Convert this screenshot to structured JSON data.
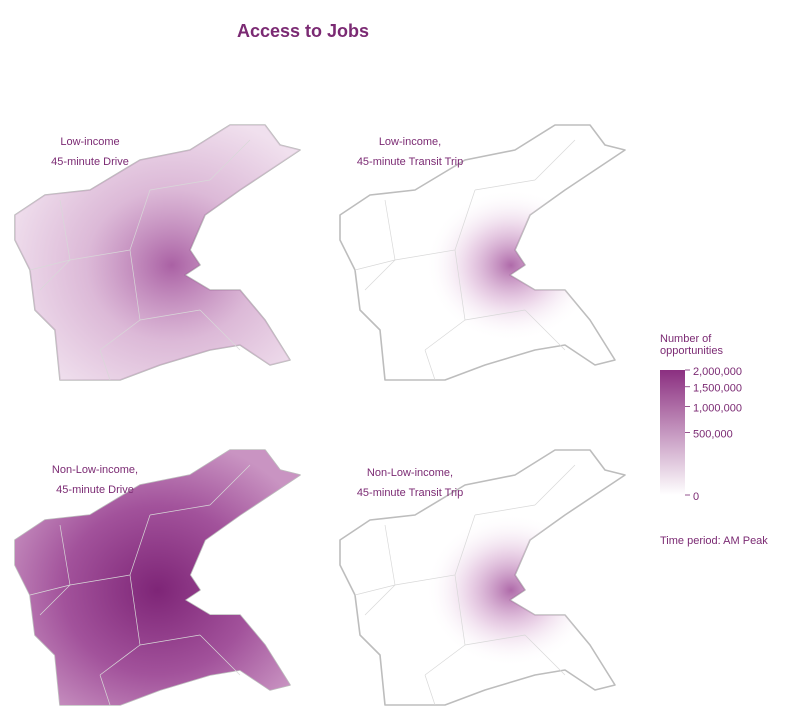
{
  "title": "Access to Jobs",
  "panels": [
    {
      "label": [
        "Low-income",
        "45-minute Drive"
      ]
    },
    {
      "label": [
        "Low-income,",
        "45-minute Transit Trip"
      ]
    },
    {
      "label": [
        "Non-Low-income,",
        "45-minute Drive"
      ]
    },
    {
      "label": [
        "Non-Low-income,",
        "45-minute Transit Trip"
      ]
    }
  ],
  "legend": {
    "title": [
      "Number of",
      "opportunities"
    ],
    "scale": "sqrt",
    "lim": [
      0,
      2000000
    ],
    "ticks": [
      {
        "value": 2000000,
        "label": "2,000,000"
      },
      {
        "value": 1500000,
        "label": "1,500,000"
      },
      {
        "value": 1000000,
        "label": "1,000,000"
      },
      {
        "value": 500000,
        "label": "500,000"
      },
      0
    ],
    "colors": [
      "#ffffff",
      "#8b2f80"
    ]
  },
  "note": "Time period: AM Peak"
}
